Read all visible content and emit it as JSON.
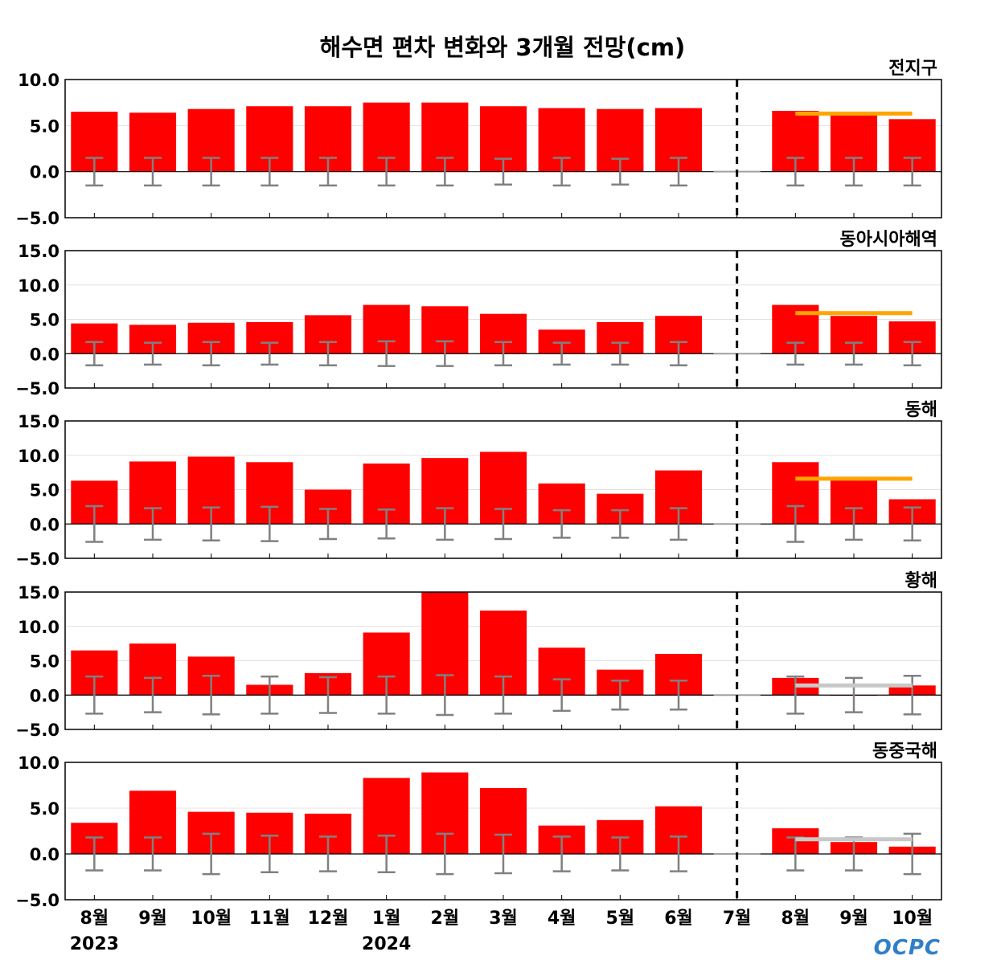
{
  "chart_data": {
    "type": "bar",
    "title": "해수면 편차 변화와 3개월 전망(cm)",
    "categories": [
      "8월",
      "9월",
      "10월",
      "11월",
      "12월",
      "1월",
      "2월",
      "3월",
      "4월",
      "5월",
      "6월",
      "7월",
      "8월",
      "9월",
      "10월"
    ],
    "year_labels": [
      {
        "index": 0,
        "label": "2023"
      },
      {
        "index": 5,
        "label": "2024"
      }
    ],
    "divider_after_month": "7월",
    "logo": "OCPC",
    "colors": {
      "bars": "#ff0000",
      "errorbars": "#808080",
      "outlook_above": "#ffa500",
      "outlook_normal": "#c8c8c8",
      "divider": "#000000"
    },
    "panels": [
      {
        "name": "전지구",
        "ylim": [
          -5,
          10
        ],
        "yticks": [
          "10.0",
          "5.0",
          "0.0",
          "−5.0"
        ],
        "ytick_values": [
          10,
          5,
          0,
          -5
        ],
        "values": [
          6.5,
          6.4,
          6.8,
          7.1,
          7.1,
          7.5,
          7.5,
          7.1,
          6.9,
          6.8,
          6.9,
          0,
          6.6,
          6.2,
          5.7
        ],
        "error": [
          1.5,
          1.5,
          1.5,
          1.5,
          1.5,
          1.5,
          1.5,
          1.4,
          1.5,
          1.4,
          1.5,
          null,
          1.5,
          1.5,
          1.5
        ],
        "outlook": {
          "value": 6.3,
          "from_index": 12,
          "to_index": 14,
          "color": "#ffa500"
        }
      },
      {
        "name": "동아시아해역",
        "ylim": [
          -5,
          15
        ],
        "yticks": [
          "15.0",
          "10.0",
          "5.0",
          "0.0",
          "−5.0"
        ],
        "ytick_values": [
          15,
          10,
          5,
          0,
          -5
        ],
        "values": [
          4.4,
          4.2,
          4.5,
          4.6,
          5.6,
          7.1,
          6.9,
          5.8,
          3.5,
          4.6,
          5.5,
          0,
          7.1,
          5.5,
          4.7
        ],
        "error": [
          1.7,
          1.6,
          1.7,
          1.6,
          1.7,
          1.8,
          1.8,
          1.7,
          1.6,
          1.6,
          1.7,
          null,
          1.6,
          1.6,
          1.7
        ],
        "outlook": {
          "value": 5.9,
          "from_index": 12,
          "to_index": 14,
          "color": "#ffa500"
        }
      },
      {
        "name": "동해",
        "ylim": [
          -5,
          15
        ],
        "yticks": [
          "15.0",
          "10.0",
          "5.0",
          "0.0",
          "−5.0"
        ],
        "ytick_values": [
          15,
          10,
          5,
          0,
          -5
        ],
        "values": [
          6.3,
          9.1,
          9.8,
          9.0,
          5.0,
          8.8,
          9.6,
          10.5,
          5.9,
          4.4,
          7.8,
          0,
          9.0,
          6.4,
          3.6
        ],
        "error": [
          2.6,
          2.3,
          2.4,
          2.5,
          2.2,
          2.1,
          2.3,
          2.2,
          2.0,
          2.0,
          2.3,
          null,
          2.6,
          2.3,
          2.4
        ],
        "outlook": {
          "value": 6.6,
          "from_index": 12,
          "to_index": 14,
          "color": "#ffa500"
        }
      },
      {
        "name": "황해",
        "ylim": [
          -5,
          15
        ],
        "yticks": [
          "15.0",
          "10.0",
          "5.0",
          "0.0",
          "−5.0"
        ],
        "ytick_values": [
          15,
          10,
          5,
          0,
          -5
        ],
        "values": [
          6.5,
          7.5,
          5.6,
          1.5,
          3.2,
          9.1,
          15.0,
          12.3,
          6.9,
          3.7,
          6.0,
          0,
          2.5,
          -0.1,
          1.4
        ],
        "error": [
          2.7,
          2.5,
          2.8,
          2.7,
          2.6,
          2.7,
          2.9,
          2.7,
          2.3,
          2.1,
          2.1,
          null,
          2.7,
          2.5,
          2.8
        ],
        "outlook": {
          "value": 1.4,
          "from_index": 12,
          "to_index": 14,
          "color": "#c8c8c8"
        }
      },
      {
        "name": "동중국해",
        "ylim": [
          -5,
          10
        ],
        "yticks": [
          "10.0",
          "5.0",
          "0.0",
          "−5.0"
        ],
        "ytick_values": [
          10,
          5,
          0,
          -5
        ],
        "values": [
          3.4,
          6.9,
          4.6,
          4.5,
          4.4,
          8.3,
          8.9,
          7.2,
          3.1,
          3.7,
          5.2,
          0,
          2.8,
          1.3,
          0.8
        ],
        "error": [
          1.8,
          1.8,
          2.2,
          2.0,
          1.9,
          2.0,
          2.2,
          2.1,
          1.9,
          1.8,
          1.9,
          null,
          1.8,
          1.8,
          2.2
        ],
        "outlook": {
          "value": 1.6,
          "from_index": 12,
          "to_index": 14,
          "color": "#c8c8c8"
        }
      }
    ]
  }
}
